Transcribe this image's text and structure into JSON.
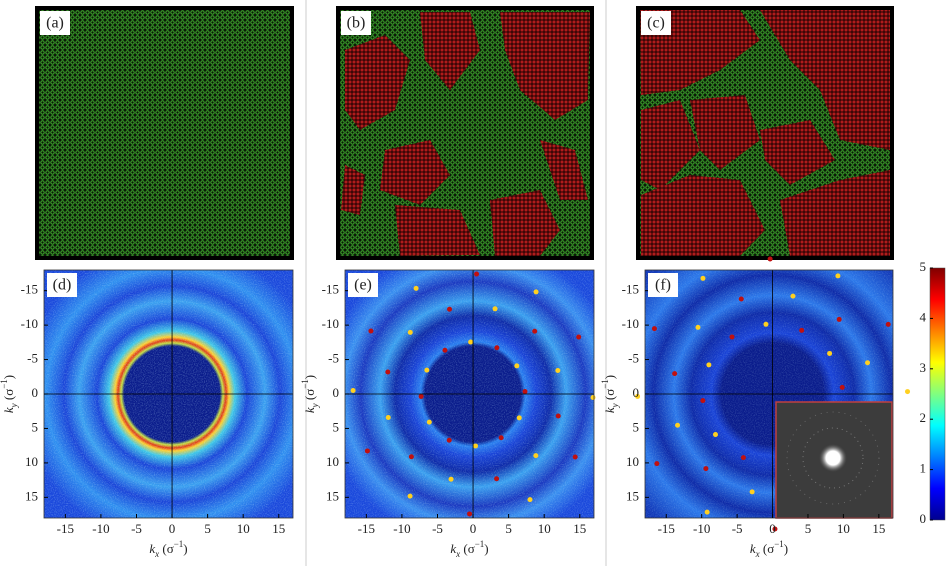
{
  "panels": [
    {
      "label": "(a)"
    },
    {
      "label": "(b)"
    },
    {
      "label": "(c)"
    },
    {
      "label": "(d)"
    },
    {
      "label": "(e)"
    },
    {
      "label": "(f)"
    }
  ],
  "axes": {
    "x_label_parts": [
      "k",
      "x",
      " (σ",
      "−1",
      ")"
    ],
    "y_label_parts": [
      "k",
      "y",
      " (σ",
      "−1",
      ")"
    ],
    "xlim": [
      -18,
      17
    ],
    "ylim": [
      -18,
      18
    ],
    "xticks": [
      -15,
      -10,
      -5,
      0,
      5,
      10,
      15
    ],
    "yticks": [
      -15,
      -10,
      -5,
      0,
      5,
      10,
      15
    ]
  },
  "colorbar": {
    "lim": [
      0,
      5
    ],
    "ticks": [
      0,
      1,
      2,
      3,
      4,
      5
    ]
  }
}
